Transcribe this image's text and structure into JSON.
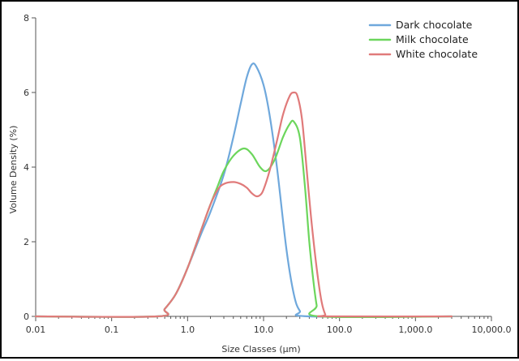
{
  "chart_data": {
    "type": "line",
    "xlabel": "Size Classes (µm)",
    "ylabel": "Volume Density (%)",
    "x_scale": "log",
    "xlim": [
      0.01,
      10000
    ],
    "ylim": [
      0,
      8
    ],
    "x_ticks": [
      {
        "value": 0.01,
        "label": "0.01"
      },
      {
        "value": 0.1,
        "label": "0.1"
      },
      {
        "value": 1,
        "label": "1.0"
      },
      {
        "value": 10,
        "label": "10.0"
      },
      {
        "value": 100,
        "label": "100.0"
      },
      {
        "value": 1000,
        "label": "1,000.0"
      },
      {
        "value": 10000,
        "label": "10,000.0"
      }
    ],
    "y_ticks": [
      {
        "value": 0,
        "label": "0"
      },
      {
        "value": 2,
        "label": "2"
      },
      {
        "value": 4,
        "label": "4"
      },
      {
        "value": 6,
        "label": "6"
      },
      {
        "value": 8,
        "label": "8"
      }
    ],
    "grid": false,
    "legend_position": "top-right",
    "series": [
      {
        "name": "Dark chocolate",
        "color": "#6fa8dc",
        "points": [
          [
            0.01,
            0
          ],
          [
            0.4,
            0
          ],
          [
            0.5,
            0.2
          ],
          [
            0.7,
            0.6
          ],
          [
            1.0,
            1.3
          ],
          [
            1.5,
            2.2
          ],
          [
            2.0,
            2.8
          ],
          [
            3.0,
            3.8
          ],
          [
            4.0,
            4.8
          ],
          [
            5.0,
            5.7
          ],
          [
            6.0,
            6.4
          ],
          [
            7.0,
            6.75
          ],
          [
            8.0,
            6.7
          ],
          [
            10.0,
            6.2
          ],
          [
            12.0,
            5.4
          ],
          [
            15.0,
            4.0
          ],
          [
            20.0,
            1.8
          ],
          [
            25.0,
            0.6
          ],
          [
            30.0,
            0.15
          ],
          [
            40.0,
            0
          ],
          [
            3000,
            0
          ]
        ]
      },
      {
        "name": "Milk chocolate",
        "color": "#6cd65c",
        "points": [
          [
            0.01,
            0
          ],
          [
            0.4,
            0
          ],
          [
            0.5,
            0.2
          ],
          [
            0.7,
            0.6
          ],
          [
            1.0,
            1.3
          ],
          [
            1.5,
            2.3
          ],
          [
            2.0,
            3.0
          ],
          [
            2.5,
            3.5
          ],
          [
            3.0,
            3.9
          ],
          [
            4.0,
            4.3
          ],
          [
            5.5,
            4.5
          ],
          [
            7.0,
            4.35
          ],
          [
            9.0,
            4.0
          ],
          [
            11.0,
            3.9
          ],
          [
            14.0,
            4.2
          ],
          [
            18.0,
            4.8
          ],
          [
            22.0,
            5.15
          ],
          [
            25.0,
            5.22
          ],
          [
            30.0,
            4.8
          ],
          [
            35.0,
            3.5
          ],
          [
            40.0,
            2.0
          ],
          [
            45.0,
            1.0
          ],
          [
            50.0,
            0.3
          ],
          [
            55.0,
            0
          ],
          [
            3000,
            0
          ]
        ]
      },
      {
        "name": "White chocolate",
        "color": "#e07a7a",
        "points": [
          [
            0.01,
            0
          ],
          [
            0.4,
            0
          ],
          [
            0.5,
            0.2
          ],
          [
            0.7,
            0.6
          ],
          [
            1.0,
            1.3
          ],
          [
            1.5,
            2.3
          ],
          [
            2.0,
            3.0
          ],
          [
            2.5,
            3.4
          ],
          [
            3.0,
            3.55
          ],
          [
            4.0,
            3.6
          ],
          [
            5.0,
            3.55
          ],
          [
            6.0,
            3.45
          ],
          [
            7.0,
            3.3
          ],
          [
            8.0,
            3.22
          ],
          [
            9.0,
            3.25
          ],
          [
            10.0,
            3.4
          ],
          [
            12.0,
            3.9
          ],
          [
            15.0,
            4.7
          ],
          [
            18.0,
            5.4
          ],
          [
            22.0,
            5.9
          ],
          [
            25.0,
            6.0
          ],
          [
            28.0,
            5.9
          ],
          [
            32.0,
            5.3
          ],
          [
            36.0,
            4.2
          ],
          [
            42.0,
            2.7
          ],
          [
            50.0,
            1.3
          ],
          [
            58.0,
            0.4
          ],
          [
            65.0,
            0.05
          ],
          [
            70.0,
            0
          ],
          [
            3000,
            0
          ]
        ]
      }
    ]
  }
}
